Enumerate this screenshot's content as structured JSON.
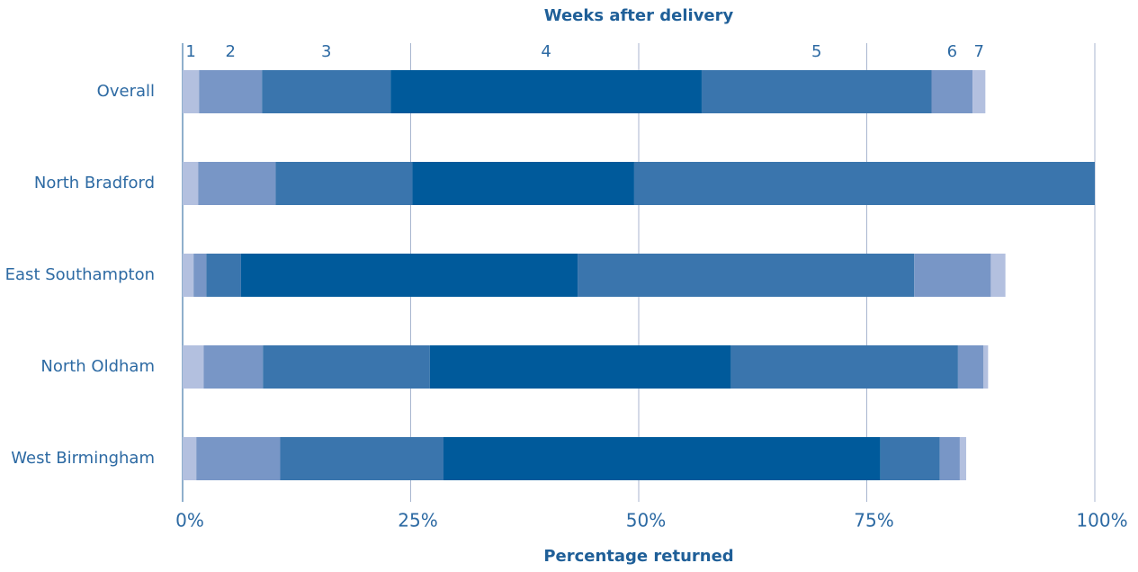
{
  "chart_data": {
    "type": "stacked_barh",
    "title": "Weeks after delivery",
    "xlabel": "Percentage returned",
    "categories": [
      "Overall",
      "North Bradford",
      "East Southampton",
      "North Oldham",
      "West Birmingham"
    ],
    "series": [
      {
        "name": "1",
        "color": "#b3c0df",
        "values": [
          1.8,
          1.7,
          1.2,
          2.3,
          1.5
        ]
      },
      {
        "name": "2",
        "color": "#7896c6",
        "values": [
          6.9,
          8.5,
          1.4,
          6.5,
          9.2
        ]
      },
      {
        "name": "3",
        "color": "#3a75ad",
        "values": [
          14.1,
          15.0,
          3.8,
          18.3,
          17.9
        ]
      },
      {
        "name": "4",
        "color": "#005a9b",
        "values": [
          34.1,
          24.3,
          36.9,
          33.0,
          47.9
        ]
      },
      {
        "name": "5",
        "color": "#3a75ad",
        "values": [
          25.2,
          50.5,
          36.9,
          24.9,
          6.5
        ]
      },
      {
        "name": "6",
        "color": "#7896c6",
        "values": [
          4.5,
          0,
          8.4,
          2.8,
          2.2
        ]
      },
      {
        "name": "7",
        "color": "#b3c0df",
        "values": [
          1.4,
          0,
          1.6,
          0.5,
          0.7
        ]
      }
    ],
    "xlim": [
      0,
      100
    ],
    "xticks": [
      {
        "value": 0,
        "label": "0%"
      },
      {
        "value": 25,
        "label": "25%"
      },
      {
        "value": 50,
        "label": "50%"
      },
      {
        "value": 75,
        "label": "75%"
      },
      {
        "value": 100,
        "label": "100%"
      }
    ],
    "grid": true
  }
}
